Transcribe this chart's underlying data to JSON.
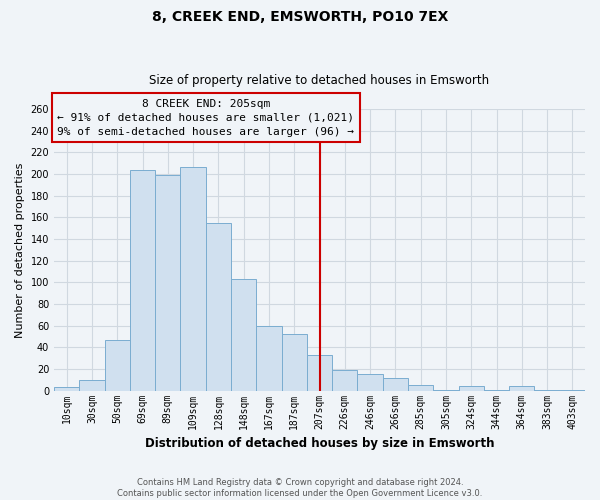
{
  "title": "8, CREEK END, EMSWORTH, PO10 7EX",
  "subtitle": "Size of property relative to detached houses in Emsworth",
  "xlabel": "Distribution of detached houses by size in Emsworth",
  "ylabel": "Number of detached properties",
  "bar_labels": [
    "10sqm",
    "30sqm",
    "50sqm",
    "69sqm",
    "89sqm",
    "109sqm",
    "128sqm",
    "148sqm",
    "167sqm",
    "187sqm",
    "207sqm",
    "226sqm",
    "246sqm",
    "266sqm",
    "285sqm",
    "305sqm",
    "324sqm",
    "344sqm",
    "364sqm",
    "383sqm",
    "403sqm"
  ],
  "bar_values": [
    3,
    10,
    47,
    204,
    199,
    206,
    155,
    103,
    60,
    52,
    33,
    19,
    15,
    12,
    5,
    1,
    4,
    1,
    4,
    1,
    1
  ],
  "bar_color": "#d0e0ef",
  "bar_edge_color": "#7aadd0",
  "vline_idx": 10,
  "vline_color": "#cc0000",
  "annotation_title": "8 CREEK END: 205sqm",
  "annotation_line1": "← 91% of detached houses are smaller (1,021)",
  "annotation_line2": "9% of semi-detached houses are larger (96) →",
  "annotation_box_edge": "#cc0000",
  "ylim": [
    0,
    260
  ],
  "yticks": [
    0,
    20,
    40,
    60,
    80,
    100,
    120,
    140,
    160,
    180,
    200,
    220,
    240,
    260
  ],
  "footnote1": "Contains HM Land Registry data © Crown copyright and database right 2024.",
  "footnote2": "Contains public sector information licensed under the Open Government Licence v3.0.",
  "background_color": "#f0f4f8",
  "grid_color": "#d0d8e0",
  "title_fontsize": 10,
  "subtitle_fontsize": 8.5,
  "ylabel_fontsize": 8,
  "xlabel_fontsize": 8.5,
  "tick_fontsize": 7,
  "annot_fontsize": 8
}
